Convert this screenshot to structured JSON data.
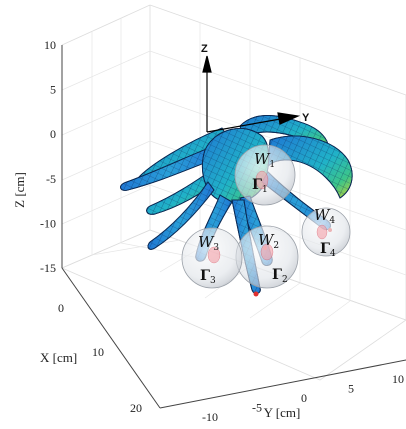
{
  "chart_data": {
    "type": "3d-surface",
    "xlabel": "X [cm]",
    "ylabel": "Y [cm]",
    "zlabel": "Z [cm]",
    "x_ticks": [
      "0",
      "10",
      "20"
    ],
    "y_ticks": [
      "-10",
      "-5",
      "0",
      "5",
      "10"
    ],
    "z_ticks": [
      "10",
      "5",
      "0",
      "-5",
      "-10",
      "-15"
    ],
    "xlim": [
      -5,
      20
    ],
    "ylim": [
      -12,
      12
    ],
    "zlim": [
      -15,
      10
    ],
    "grid": true,
    "frame_axes": [
      "Z",
      "Y"
    ],
    "colormap": [
      "#1f77d4",
      "#20b2c8",
      "#3cc58a",
      "#c8d430",
      "#f2a020"
    ],
    "workspaces": [
      {
        "label": "W",
        "subscript": "1",
        "boundary_label": "Γ",
        "boundary_subscript": "1"
      },
      {
        "label": "W",
        "subscript": "2",
        "boundary_label": "Γ",
        "boundary_subscript": "2"
      },
      {
        "label": "W",
        "subscript": "3",
        "boundary_label": "Γ",
        "boundary_subscript": "3"
      },
      {
        "label": "W",
        "subscript": "4",
        "boundary_label": "Γ",
        "boundary_subscript": "4"
      }
    ]
  }
}
